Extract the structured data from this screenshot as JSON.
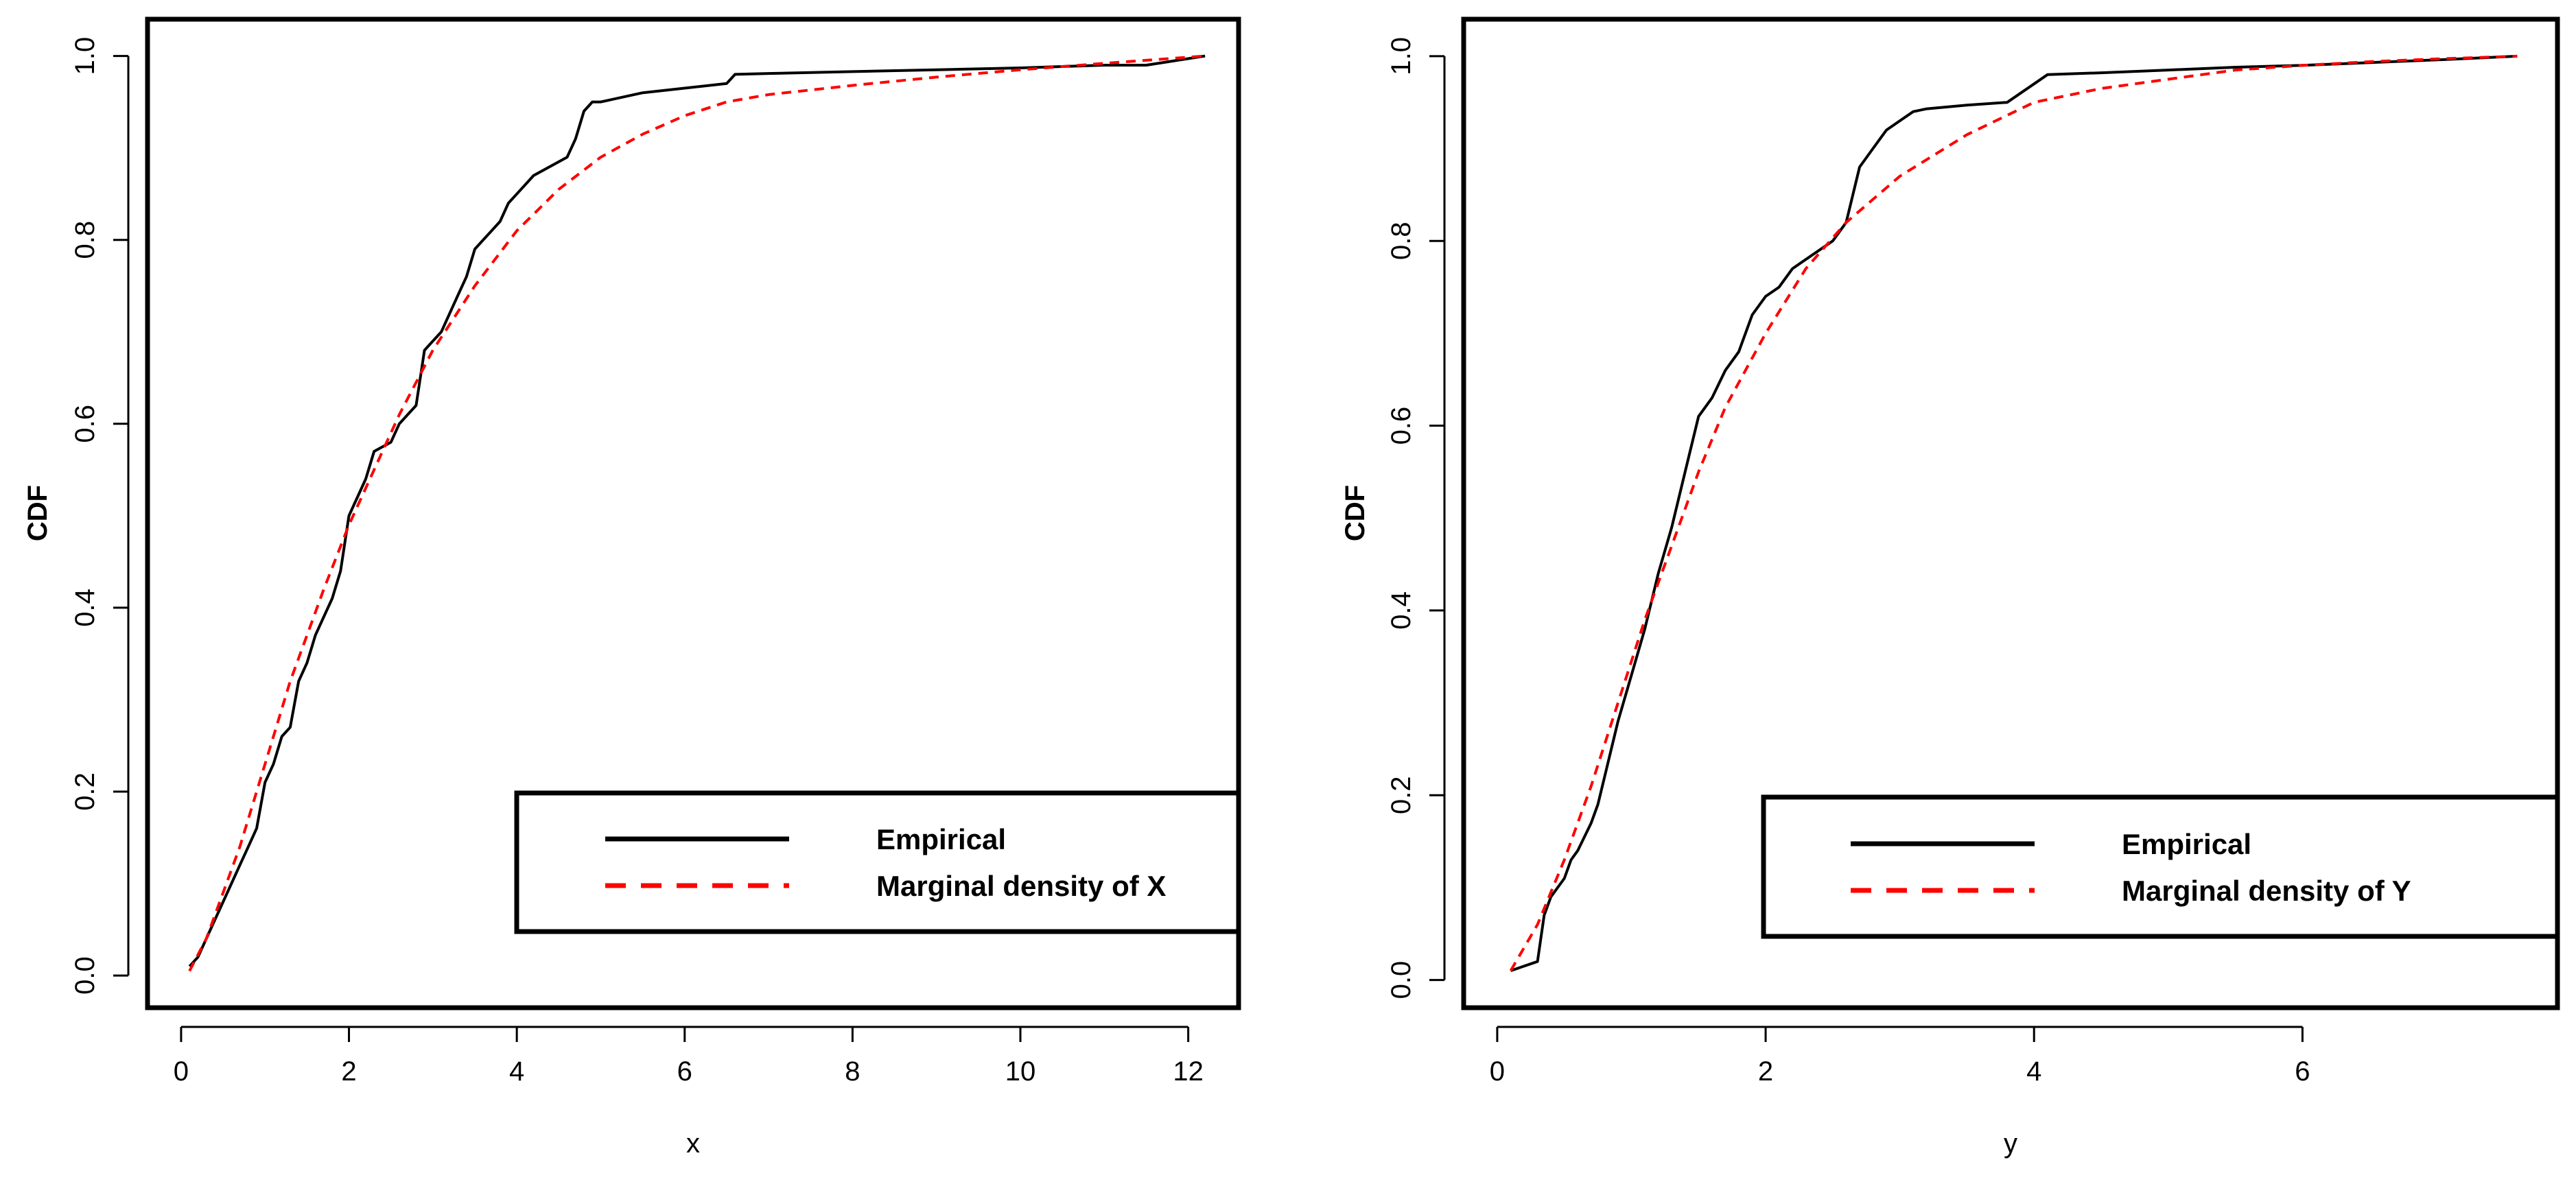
{
  "colors": {
    "empirical": "#000000",
    "marginal": "#ff0000",
    "axes": "#000000",
    "background": "#ffffff"
  },
  "chart_data": [
    {
      "type": "line",
      "title": "",
      "xlabel": "x",
      "ylabel": "CDF",
      "xlim": [
        -0.4,
        12.6
      ],
      "ylim": [
        -0.035,
        1.04
      ],
      "xticks": [
        0,
        2,
        4,
        6,
        8,
        10,
        12
      ],
      "yticks": [
        0.0,
        0.2,
        0.4,
        0.6,
        0.8,
        1.0
      ],
      "xtick_labels": [
        "0",
        "2",
        "4",
        "6",
        "8",
        "10",
        "12"
      ],
      "ytick_labels": [
        "0.0",
        "0.2",
        "0.4",
        "0.6",
        "0.8",
        "1.0"
      ],
      "legend": {
        "placement": "bottom-right",
        "entries": [
          {
            "label": "Empirical",
            "style": "solid",
            "color": "#000000"
          },
          {
            "label": "Marginal density of X",
            "style": "dashed",
            "color": "#ff0000"
          }
        ]
      },
      "series": [
        {
          "name": "Empirical",
          "style": "solid",
          "color": "#000000",
          "x": [
            0.1,
            0.2,
            0.3,
            0.4,
            0.5,
            0.6,
            0.7,
            0.8,
            0.9,
            1.0,
            1.1,
            1.2,
            1.3,
            1.4,
            1.5,
            1.6,
            1.7,
            1.8,
            1.9,
            2.0,
            2.1,
            2.2,
            2.3,
            2.5,
            2.6,
            2.8,
            2.9,
            3.0,
            3.1,
            3.2,
            3.3,
            3.4,
            3.5,
            3.6,
            3.7,
            3.8,
            3.9,
            4.0,
            4.1,
            4.2,
            4.4,
            4.6,
            4.7,
            4.8,
            4.9,
            5.0,
            5.5,
            6.0,
            6.5,
            6.6,
            7.0,
            8.0,
            9.0,
            10.0,
            11.0,
            11.5,
            12.2
          ],
          "y": [
            0.01,
            0.02,
            0.04,
            0.06,
            0.08,
            0.1,
            0.12,
            0.14,
            0.16,
            0.21,
            0.23,
            0.26,
            0.27,
            0.32,
            0.34,
            0.37,
            0.39,
            0.41,
            0.44,
            0.5,
            0.52,
            0.54,
            0.57,
            0.58,
            0.6,
            0.62,
            0.68,
            0.69,
            0.7,
            0.72,
            0.74,
            0.76,
            0.79,
            0.8,
            0.81,
            0.82,
            0.84,
            0.85,
            0.86,
            0.87,
            0.88,
            0.89,
            0.91,
            0.94,
            0.95,
            0.95,
            0.96,
            0.965,
            0.97,
            0.98,
            0.981,
            0.983,
            0.985,
            0.987,
            0.99,
            0.99,
            1.0
          ]
        },
        {
          "name": "Marginal density of X",
          "style": "dashed",
          "color": "#ff0000",
          "x": [
            0.1,
            0.3,
            0.5,
            0.7,
            0.9,
            1.1,
            1.3,
            1.5,
            1.7,
            2.0,
            2.3,
            2.6,
            3.0,
            3.5,
            4.0,
            4.5,
            5.0,
            5.5,
            6.0,
            6.5,
            7.0,
            8.0,
            9.0,
            10.0,
            11.0,
            12.2
          ],
          "y": [
            0.005,
            0.04,
            0.09,
            0.14,
            0.2,
            0.26,
            0.32,
            0.37,
            0.42,
            0.49,
            0.55,
            0.61,
            0.68,
            0.75,
            0.81,
            0.855,
            0.89,
            0.915,
            0.935,
            0.95,
            0.958,
            0.968,
            0.977,
            0.985,
            0.992,
            1.0
          ]
        }
      ]
    },
    {
      "type": "line",
      "title": "",
      "xlabel": "y",
      "ylabel": "CDF",
      "xlim": [
        -0.25,
        7.9
      ],
      "ylim": [
        -0.03,
        1.04
      ],
      "xticks": [
        0,
        2,
        4,
        6
      ],
      "yticks": [
        0.0,
        0.2,
        0.4,
        0.6,
        0.8,
        1.0
      ],
      "xtick_labels": [
        "0",
        "2",
        "4",
        "6"
      ],
      "ytick_labels": [
        "0.0",
        "0.2",
        "0.4",
        "0.6",
        "0.8",
        "1.0"
      ],
      "legend": {
        "placement": "bottom-right",
        "entries": [
          {
            "label": "Empirical",
            "style": "solid",
            "color": "#000000"
          },
          {
            "label": "Marginal density of Y",
            "style": "dashed",
            "color": "#ff0000"
          }
        ]
      },
      "series": [
        {
          "name": "Empirical",
          "style": "solid",
          "color": "#000000",
          "x": [
            0.1,
            0.2,
            0.3,
            0.35,
            0.4,
            0.5,
            0.55,
            0.6,
            0.7,
            0.75,
            0.8,
            0.9,
            1.0,
            1.1,
            1.2,
            1.3,
            1.4,
            1.5,
            1.6,
            1.7,
            1.8,
            1.9,
            2.0,
            2.1,
            2.2,
            2.3,
            2.5,
            2.6,
            2.7,
            2.8,
            2.9,
            3.0,
            3.1,
            3.2,
            3.5,
            3.8,
            3.9,
            4.0,
            4.1,
            4.5,
            5.0,
            5.5,
            6.0,
            6.5,
            7.0,
            7.6
          ],
          "y": [
            0.01,
            0.015,
            0.02,
            0.07,
            0.09,
            0.11,
            0.13,
            0.14,
            0.17,
            0.19,
            0.22,
            0.28,
            0.33,
            0.38,
            0.44,
            0.49,
            0.55,
            0.61,
            0.63,
            0.66,
            0.68,
            0.72,
            0.74,
            0.75,
            0.77,
            0.78,
            0.8,
            0.82,
            0.88,
            0.9,
            0.92,
            0.93,
            0.94,
            0.943,
            0.947,
            0.95,
            0.96,
            0.97,
            0.98,
            0.982,
            0.985,
            0.988,
            0.99,
            0.993,
            0.996,
            1.0
          ]
        },
        {
          "name": "Marginal density of Y",
          "style": "dashed",
          "color": "#ff0000",
          "x": [
            0.1,
            0.3,
            0.5,
            0.7,
            0.9,
            1.1,
            1.3,
            1.5,
            1.7,
            2.0,
            2.3,
            2.6,
            3.0,
            3.5,
            4.0,
            4.5,
            5.0,
            5.5,
            6.0,
            6.5,
            7.0,
            7.6
          ],
          "y": [
            0.01,
            0.06,
            0.13,
            0.21,
            0.3,
            0.39,
            0.47,
            0.55,
            0.62,
            0.7,
            0.77,
            0.82,
            0.87,
            0.915,
            0.95,
            0.965,
            0.975,
            0.985,
            0.99,
            0.994,
            0.997,
            1.0
          ]
        }
      ]
    }
  ]
}
